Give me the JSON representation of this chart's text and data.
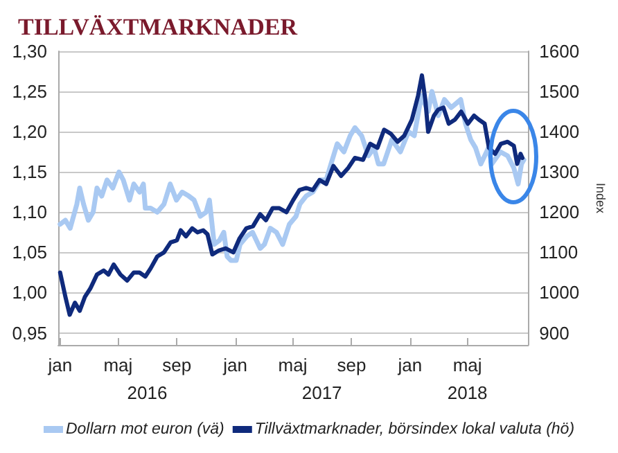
{
  "chart_data": {
    "type": "line",
    "title": "TILLVÄXTMARKNADER",
    "y2label": "Index",
    "xlim": [
      "2015-12-28",
      "2018-09-05"
    ],
    "xticks": [
      {
        "value": "2016-01-01",
        "label": "jan"
      },
      {
        "value": "2016-05-01",
        "label": "maj"
      },
      {
        "value": "2016-09-01",
        "label": "sep"
      },
      {
        "value": "2017-01-01",
        "label": "jan"
      },
      {
        "value": "2017-05-01",
        "label": "maj"
      },
      {
        "value": "2017-09-01",
        "label": "sep"
      },
      {
        "value": "2018-01-01",
        "label": "jan"
      },
      {
        "value": "2018-05-01",
        "label": "maj"
      }
    ],
    "x2lim": [
      "2015-12-28",
      "2018-09-05"
    ],
    "x2ticks": [
      {
        "value": "2016-07-01",
        "label": "2016"
      },
      {
        "value": "2017-07-01",
        "label": "2017"
      },
      {
        "value": "2018-05-01",
        "label": "2018"
      }
    ],
    "ylim": [
      0.935,
      1.3
    ],
    "yticks": [
      {
        "value": 0.95,
        "label": "0,95"
      },
      {
        "value": 1.0,
        "label": "1,00"
      },
      {
        "value": 1.05,
        "label": "1,05"
      },
      {
        "value": 1.1,
        "label": "1,10"
      },
      {
        "value": 1.15,
        "label": "1,15"
      },
      {
        "value": 1.2,
        "label": "1,20"
      },
      {
        "value": 1.25,
        "label": "1,25"
      },
      {
        "value": 1.3,
        "label": "1,30"
      }
    ],
    "y2lim": [
      870,
      1600
    ],
    "y2ticks": [
      900,
      1000,
      1100,
      1200,
      1300,
      1400,
      1500,
      1600
    ],
    "grid": "y",
    "legend": "bottom",
    "marker": "none",
    "line_style": "solid",
    "series": [
      {
        "name": "Dollarn mot euron (vä)",
        "color": "#a9c9f2",
        "x": [
          "2016-01-01",
          "2016-01-12",
          "2016-01-22",
          "2016-02-05",
          "2016-02-11",
          "2016-02-19",
          "2016-02-29",
          "2016-03-10",
          "2016-03-18",
          "2016-03-28",
          "2016-04-08",
          "2016-04-20",
          "2016-05-03",
          "2016-05-12",
          "2016-05-25",
          "2016-06-03",
          "2016-06-15",
          "2016-06-23",
          "2016-06-27",
          "2016-07-08",
          "2016-07-22",
          "2016-08-05",
          "2016-08-18",
          "2016-08-31",
          "2016-09-12",
          "2016-09-26",
          "2016-10-07",
          "2016-10-20",
          "2016-11-01",
          "2016-11-08",
          "2016-11-18",
          "2016-11-29",
          "2016-12-08",
          "2016-12-15",
          "2016-12-23",
          "2017-01-03",
          "2017-01-11",
          "2017-01-25",
          "2017-02-06",
          "2017-02-22",
          "2017-03-03",
          "2017-03-15",
          "2017-03-28",
          "2017-04-10",
          "2017-04-24",
          "2017-05-08",
          "2017-05-16",
          "2017-05-29",
          "2017-06-12",
          "2017-06-28",
          "2017-07-10",
          "2017-07-20",
          "2017-08-02",
          "2017-08-16",
          "2017-08-29",
          "2017-09-08",
          "2017-09-22",
          "2017-10-06",
          "2017-10-18",
          "2017-10-27",
          "2017-11-07",
          "2017-11-24",
          "2017-12-12",
          "2017-12-29",
          "2018-01-10",
          "2018-01-25",
          "2018-02-08",
          "2018-02-16",
          "2018-03-01",
          "2018-03-14",
          "2018-03-28",
          "2018-04-17",
          "2018-04-27",
          "2018-05-08",
          "2018-05-18",
          "2018-05-29",
          "2018-06-14",
          "2018-06-21",
          "2018-07-09",
          "2018-07-24",
          "2018-08-06",
          "2018-08-15",
          "2018-08-22",
          "2018-08-27"
        ],
        "values": [
          1.085,
          1.09,
          1.08,
          1.11,
          1.13,
          1.11,
          1.09,
          1.1,
          1.13,
          1.12,
          1.14,
          1.13,
          1.15,
          1.14,
          1.115,
          1.135,
          1.125,
          1.135,
          1.105,
          1.105,
          1.1,
          1.11,
          1.135,
          1.115,
          1.125,
          1.12,
          1.115,
          1.095,
          1.1,
          1.115,
          1.06,
          1.065,
          1.075,
          1.045,
          1.04,
          1.04,
          1.06,
          1.07,
          1.075,
          1.055,
          1.06,
          1.08,
          1.075,
          1.06,
          1.085,
          1.095,
          1.11,
          1.12,
          1.125,
          1.14,
          1.14,
          1.16,
          1.185,
          1.175,
          1.195,
          1.205,
          1.195,
          1.17,
          1.18,
          1.16,
          1.16,
          1.19,
          1.175,
          1.2,
          1.195,
          1.245,
          1.225,
          1.25,
          1.22,
          1.24,
          1.23,
          1.24,
          1.21,
          1.19,
          1.18,
          1.16,
          1.18,
          1.16,
          1.175,
          1.17,
          1.155,
          1.135,
          1.16,
          1.165
        ]
      },
      {
        "name": "Tillväxtmarknader, börsindex lokal valuta (hö)",
        "color": "#0f2a7c",
        "axis": "y2",
        "x": [
          "2016-01-01",
          "2016-01-12",
          "2016-01-21",
          "2016-02-01",
          "2016-02-11",
          "2016-02-22",
          "2016-03-04",
          "2016-03-18",
          "2016-04-01",
          "2016-04-11",
          "2016-04-22",
          "2016-05-06",
          "2016-05-20",
          "2016-06-03",
          "2016-06-15",
          "2016-06-27",
          "2016-07-08",
          "2016-07-22",
          "2016-08-05",
          "2016-08-19",
          "2016-09-01",
          "2016-09-09",
          "2016-09-20",
          "2016-10-03",
          "2016-10-14",
          "2016-10-26",
          "2016-11-04",
          "2016-11-14",
          "2016-11-28",
          "2016-12-12",
          "2016-12-28",
          "2017-01-10",
          "2017-01-24",
          "2017-02-07",
          "2017-02-22",
          "2017-03-06",
          "2017-03-20",
          "2017-04-03",
          "2017-04-18",
          "2017-05-02",
          "2017-05-15",
          "2017-05-29",
          "2017-06-12",
          "2017-06-26",
          "2017-07-10",
          "2017-07-25",
          "2017-08-10",
          "2017-08-25",
          "2017-09-08",
          "2017-09-25",
          "2017-10-10",
          "2017-10-25",
          "2017-11-08",
          "2017-11-22",
          "2017-12-06",
          "2017-12-20",
          "2018-01-05",
          "2018-01-18",
          "2018-01-26",
          "2018-02-02",
          "2018-02-08",
          "2018-02-20",
          "2018-03-01",
          "2018-03-12",
          "2018-03-23",
          "2018-04-05",
          "2018-04-18",
          "2018-05-02",
          "2018-05-15",
          "2018-05-25",
          "2018-06-06",
          "2018-06-15",
          "2018-06-28",
          "2018-07-10",
          "2018-07-24",
          "2018-08-06",
          "2018-08-13",
          "2018-08-20",
          "2018-08-24"
        ],
        "values": [
          1050,
          990,
          945,
          975,
          955,
          990,
          1010,
          1045,
          1055,
          1045,
          1070,
          1045,
          1030,
          1050,
          1050,
          1040,
          1060,
          1090,
          1100,
          1125,
          1130,
          1155,
          1140,
          1160,
          1150,
          1155,
          1145,
          1095,
          1105,
          1110,
          1100,
          1135,
          1160,
          1165,
          1195,
          1180,
          1210,
          1210,
          1200,
          1230,
          1255,
          1260,
          1255,
          1280,
          1270,
          1315,
          1290,
          1310,
          1335,
          1330,
          1370,
          1360,
          1405,
          1395,
          1375,
          1390,
          1430,
          1490,
          1540,
          1480,
          1400,
          1440,
          1455,
          1460,
          1420,
          1430,
          1450,
          1420,
          1440,
          1430,
          1420,
          1360,
          1345,
          1370,
          1375,
          1365,
          1320,
          1345,
          1335
        ]
      }
    ]
  }
}
